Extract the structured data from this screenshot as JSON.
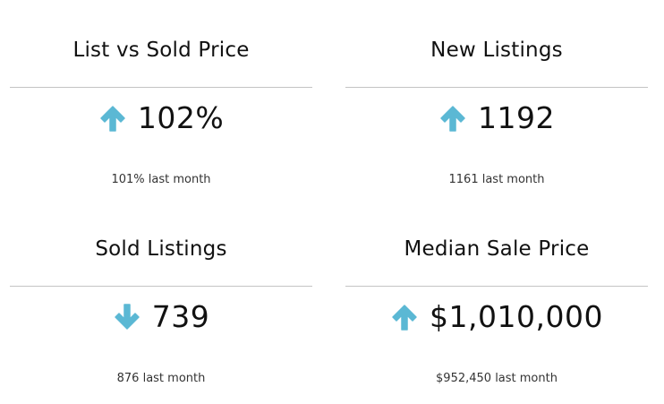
{
  "theme": {
    "arrow_color": "#5BB8D4",
    "divider_color": "#C4C4C4",
    "text_color": "#111111"
  },
  "cards": [
    {
      "title": "List vs Sold Price",
      "trend": "up",
      "arrow_icon": "arrow-up-icon",
      "value": "102%",
      "comparison": "101% last month"
    },
    {
      "title": "New Listings",
      "trend": "up",
      "arrow_icon": "arrow-up-icon",
      "value": "1192",
      "comparison": "1161 last month"
    },
    {
      "title": "Sold Listings",
      "trend": "down",
      "arrow_icon": "arrow-down-icon",
      "value": "739",
      "comparison": "876 last month"
    },
    {
      "title": "Median Sale Price",
      "trend": "up",
      "arrow_icon": "arrow-up-icon",
      "value": "$1,010,000",
      "comparison": "$952,450 last month"
    }
  ]
}
